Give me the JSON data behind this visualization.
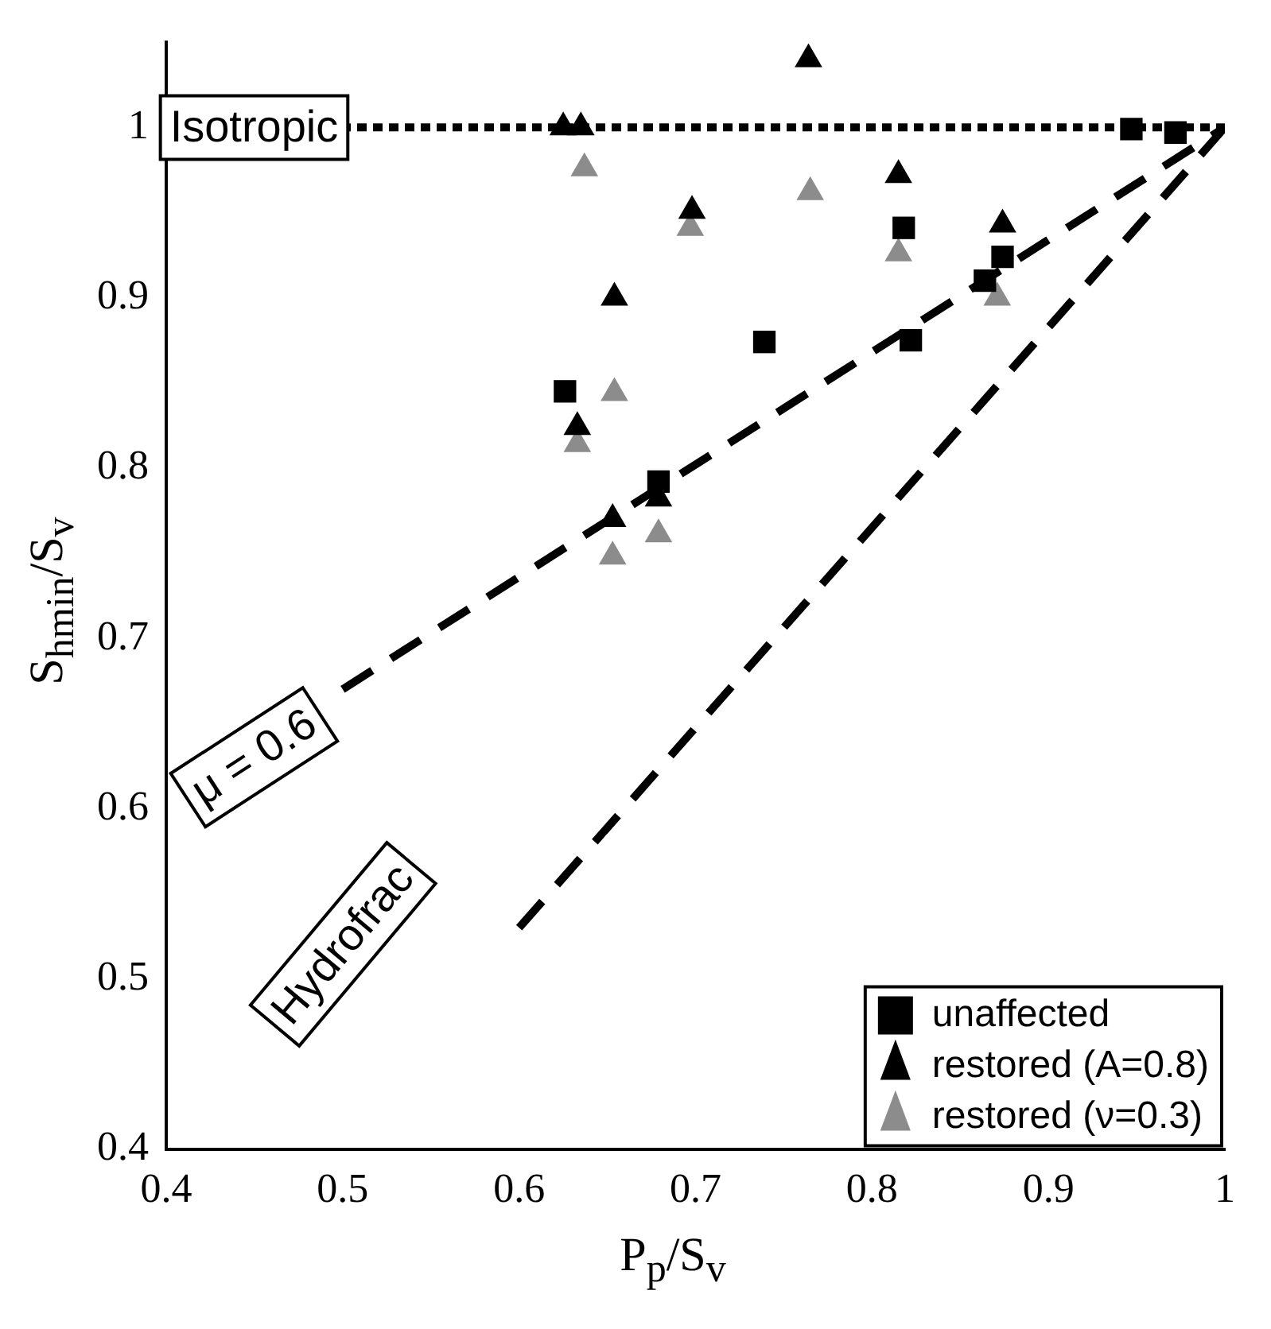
{
  "chart_data": {
    "type": "scatter",
    "xlabel": "P$_{p}$/S$_{v}$",
    "ylabel": "S$_{hmin}$/S$_{v}$",
    "xlim": [
      0.4,
      1
    ],
    "ylim": [
      0.4,
      1.05
    ],
    "xticks": [
      0.4,
      0.5,
      0.6,
      0.7,
      0.8,
      0.9,
      {
        "value": 1,
        "label": "1"
      }
    ],
    "yticks": [
      0.4,
      0.5,
      0.6,
      0.7,
      0.8,
      0.9,
      {
        "value": 1,
        "label": "1"
      }
    ],
    "grid": false,
    "legend": "bottom right",
    "series": [
      {
        "name": "unaffected",
        "type": "scatter",
        "marker": "square",
        "color": "#000000",
        "x": [
          0.626,
          0.679,
          0.739,
          0.822,
          0.818,
          0.864,
          0.874,
          0.947,
          0.972
        ],
        "values": [
          0.845,
          0.792,
          0.874,
          0.875,
          0.941,
          0.91,
          0.924,
          0.999,
          0.997
        ]
      },
      {
        "name": "restored (A=0.8)",
        "type": "scatter",
        "marker": "triangle",
        "color": "#000000",
        "x": [
          0.625,
          0.635,
          0.633,
          0.653,
          0.654,
          0.679,
          0.698,
          0.764,
          0.815,
          0.874
        ],
        "values": [
          1.0,
          1.0,
          0.824,
          0.77,
          0.9,
          0.782,
          0.951,
          1.04,
          0.972,
          0.943
        ]
      },
      {
        "name": "restored (ν=0.3)",
        "type": "scatter",
        "marker": "triangle",
        "color": "#8c8c8c",
        "x": [
          0.637,
          0.633,
          0.654,
          0.653,
          0.679,
          0.697,
          0.765,
          0.815,
          0.871
        ],
        "values": [
          0.976,
          0.814,
          0.844,
          0.748,
          0.761,
          0.941,
          0.962,
          0.926,
          0.9
        ]
      },
      {
        "type": "line",
        "marker": "none",
        "line_style": "dotted",
        "color": "#000000",
        "x": [
          0.4,
          1
        ],
        "values": [
          1.0,
          1.0
        ]
      },
      {
        "type": "line",
        "marker": "none",
        "line_style": "dashed",
        "color": "#000000",
        "x": [
          0.5,
          1
        ],
        "values": [
          0.67,
          1.0
        ]
      },
      {
        "type": "line",
        "marker": "none",
        "line_style": "dashed",
        "color": "#000000",
        "x": [
          0.6,
          1
        ],
        "values": [
          0.53,
          1.0
        ]
      }
    ],
    "annotations": [
      "Isotropic",
      "μ = 0.6",
      "Hydrofrac"
    ]
  }
}
